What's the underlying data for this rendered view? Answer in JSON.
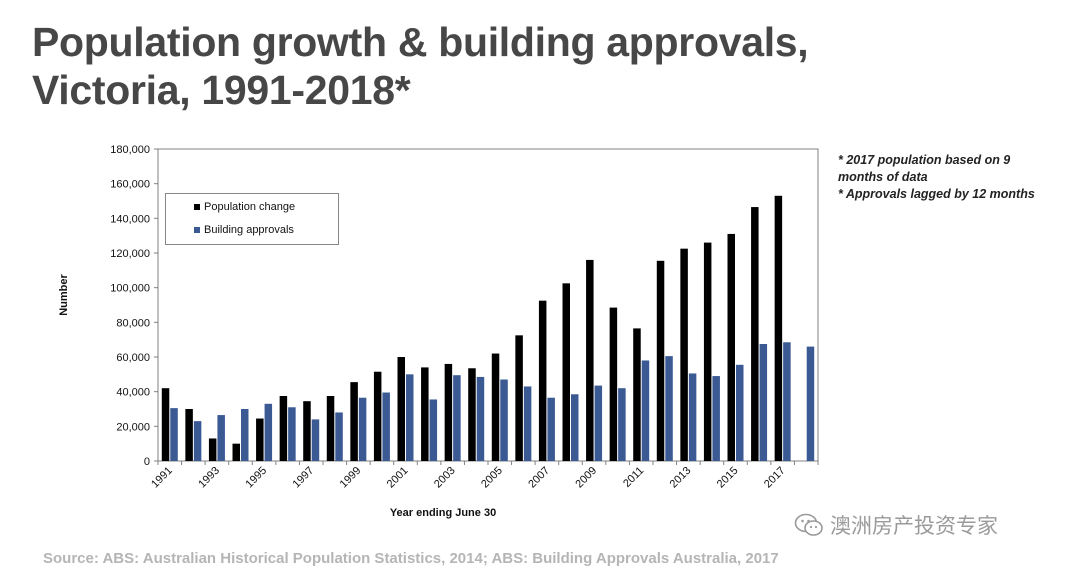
{
  "title": {
    "line1": "Population growth & building approvals,",
    "line2": "Victoria, 1991-2018*"
  },
  "notes": [
    "* 2017 population based on 9",
    "months of data",
    "* Approvals lagged by 12 months"
  ],
  "source": "Source: ABS: Australian Historical Population Statistics, 2014; ABS: Building Approvals Australia, 2017",
  "watermark": {
    "text": "澳洲房产投资专家",
    "icon": "wechat-icon"
  },
  "colors": {
    "population": "#000000",
    "approvals": "#3b5a94",
    "title": "#474747",
    "source": "#b5b5b5"
  },
  "chart_data": {
    "type": "bar",
    "title": "Population growth & building approvals, Victoria, 1991-2018*",
    "xlabel": "Year ending June 30",
    "ylabel": "Number",
    "ylim": [
      0,
      180000
    ],
    "yticks": [
      "0",
      "20,000",
      "40,000",
      "60,000",
      "80,000",
      "100,000",
      "120,000",
      "140,000",
      "160,000",
      "180,000"
    ],
    "categories": [
      "1991",
      "1992",
      "1993",
      "1994",
      "1995",
      "1996",
      "1997",
      "1998",
      "1999",
      "2000",
      "2001",
      "2002",
      "2003",
      "2004",
      "2005",
      "2006",
      "2007",
      "2008",
      "2009",
      "2010",
      "2011",
      "2012",
      "2013",
      "2014",
      "2015",
      "2016",
      "2017",
      "2018"
    ],
    "xtick_labels": [
      "1991",
      "1993",
      "1995",
      "1997",
      "1999",
      "2001",
      "2003",
      "2005",
      "2007",
      "2009",
      "2011",
      "2013",
      "2015",
      "2017"
    ],
    "legend_position": "top-left",
    "grid": false,
    "series": [
      {
        "name": "Population change",
        "color": "#000000",
        "values": [
          42000,
          30000,
          13000,
          10000,
          24500,
          37500,
          34500,
          37500,
          45500,
          51500,
          60000,
          54000,
          56000,
          53500,
          62000,
          72500,
          92500,
          102500,
          116000,
          88500,
          76500,
          115500,
          122500,
          126000,
          131000,
          146500,
          153000,
          null
        ]
      },
      {
        "name": "Building approvals",
        "color": "#3b5a94",
        "values": [
          30500,
          23000,
          26500,
          30000,
          33000,
          31000,
          24000,
          28000,
          36500,
          39500,
          50000,
          35500,
          49500,
          48500,
          47000,
          43000,
          36500,
          38500,
          43500,
          42000,
          58000,
          60500,
          50500,
          49000,
          55500,
          67500,
          68500,
          66000
        ]
      }
    ]
  }
}
